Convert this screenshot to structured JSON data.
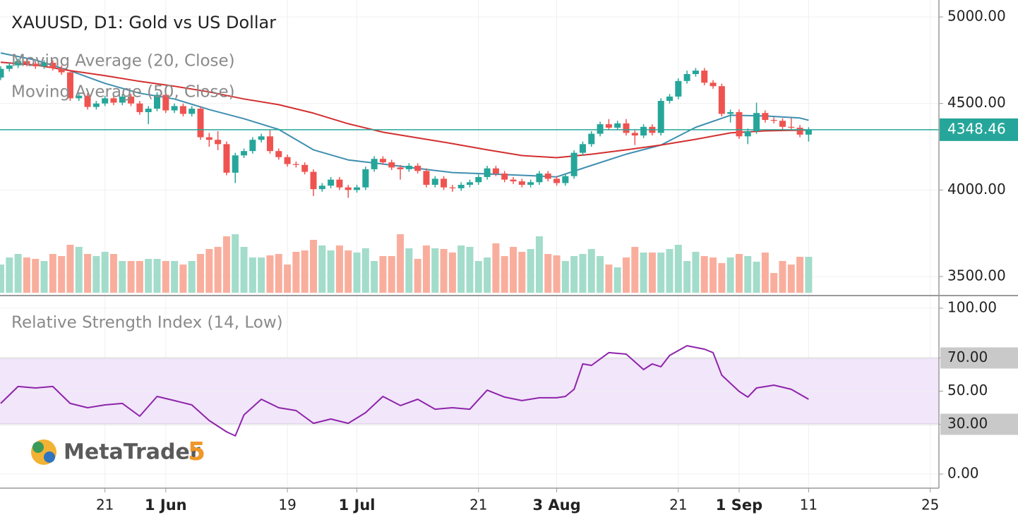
{
  "chart_data": [
    {
      "type": "candlestick",
      "title": "XAUUSD, D1: Gold vs US Dollar",
      "open": [
        4650,
        4700,
        4720,
        4745,
        4730,
        4715,
        4735,
        4705,
        4680,
        4530,
        4545,
        4480,
        4500,
        4530,
        4505,
        4540,
        4500,
        4450,
        4470,
        4550,
        4460,
        4485,
        4440,
        4470,
        4305,
        4290,
        4265,
        4100,
        4200,
        4225,
        4290,
        4310,
        4225,
        4190,
        4150,
        4145,
        4105,
        4005,
        4025,
        4060,
        4015,
        4000,
        4015,
        4120,
        4180,
        4160,
        4130,
        4120,
        4140,
        4110,
        4030,
        4065,
        4015,
        4010,
        4030,
        4045,
        4075,
        4125,
        4095,
        4060,
        4050,
        4030,
        4045,
        4095,
        4065,
        4040,
        4080,
        4215,
        4265,
        4325,
        4380,
        4360,
        4385,
        4330,
        4315,
        4365,
        4330,
        4515,
        4540,
        4630,
        4670,
        4690,
        4620,
        4600,
        4440,
        4450,
        4310,
        4340,
        4445,
        4405,
        4400,
        4365,
        4360,
        4320
      ],
      "high": [
        4715,
        4735,
        4760,
        4760,
        4745,
        4750,
        4750,
        4720,
        4695,
        4560,
        4560,
        4515,
        4545,
        4545,
        4555,
        4555,
        4515,
        4485,
        4565,
        4565,
        4500,
        4500,
        4485,
        4485,
        4330,
        4340,
        4280,
        4215,
        4240,
        4305,
        4325,
        4345,
        4240,
        4205,
        4165,
        4160,
        4120,
        4040,
        4075,
        4075,
        4030,
        4030,
        4135,
        4195,
        4195,
        4175,
        4145,
        4155,
        4155,
        4125,
        4080,
        4080,
        4030,
        4045,
        4060,
        4090,
        4140,
        4140,
        4110,
        4075,
        4065,
        4060,
        4110,
        4110,
        4080,
        4095,
        4230,
        4280,
        4340,
        4395,
        4410,
        4400,
        4410,
        4345,
        4380,
        4380,
        4530,
        4555,
        4645,
        4690,
        4705,
        4705,
        4635,
        4615,
        4465,
        4465,
        4355,
        4505,
        4460,
        4420,
        4415,
        4415,
        4375,
        4363
      ],
      "low": [
        4635,
        4685,
        4705,
        4715,
        4700,
        4700,
        4690,
        4665,
        4515,
        4515,
        4465,
        4465,
        4485,
        4490,
        4490,
        4485,
        4435,
        4380,
        4455,
        4445,
        4445,
        4425,
        4425,
        4290,
        4250,
        4230,
        4085,
        4040,
        4185,
        4210,
        4275,
        4210,
        4175,
        4135,
        4130,
        4090,
        3965,
        3990,
        4010,
        4000,
        3955,
        3985,
        4000,
        4105,
        4145,
        4115,
        4060,
        4105,
        4095,
        4015,
        4015,
        4000,
        3990,
        3995,
        4015,
        4030,
        4060,
        4080,
        4045,
        4035,
        4015,
        4015,
        4030,
        4050,
        4025,
        4025,
        4065,
        4200,
        4250,
        4310,
        4345,
        4345,
        4315,
        4260,
        4300,
        4315,
        4315,
        4500,
        4525,
        4615,
        4655,
        4605,
        4585,
        4425,
        4390,
        4295,
        4265,
        4325,
        4390,
        4385,
        4350,
        4345,
        4305,
        4280
      ],
      "close": [
        4700,
        4720,
        4745,
        4730,
        4715,
        4735,
        4705,
        4680,
        4530,
        4545,
        4480,
        4500,
        4530,
        4505,
        4540,
        4500,
        4450,
        4470,
        4550,
        4460,
        4485,
        4440,
        4470,
        4305,
        4290,
        4265,
        4100,
        4200,
        4225,
        4290,
        4310,
        4225,
        4190,
        4150,
        4145,
        4105,
        4005,
        4025,
        4060,
        4015,
        4000,
        4015,
        4120,
        4180,
        4160,
        4130,
        4120,
        4140,
        4110,
        4030,
        4065,
        4015,
        4010,
        4030,
        4045,
        4075,
        4125,
        4095,
        4060,
        4050,
        4030,
        4045,
        4095,
        4065,
        4040,
        4080,
        4215,
        4265,
        4325,
        4380,
        4360,
        4385,
        4330,
        4315,
        4365,
        4330,
        4515,
        4540,
        4630,
        4670,
        4690,
        4620,
        4600,
        4440,
        4450,
        4310,
        4340,
        4445,
        4405,
        4400,
        4365,
        4360,
        4320,
        4348.46
      ],
      "up_color": "#26a69a",
      "down_color": "#ef5350",
      "volume": {
        "values": [
          40,
          50,
          55,
          50,
          48,
          45,
          55,
          52,
          68,
          65,
          55,
          52,
          58,
          55,
          45,
          45,
          45,
          48,
          48,
          45,
          45,
          40,
          45,
          55,
          62,
          65,
          80,
          83,
          65,
          50,
          50,
          53,
          55,
          40,
          58,
          60,
          75,
          67,
          60,
          67,
          60,
          57,
          63,
          45,
          52,
          52,
          83,
          63,
          48,
          67,
          63,
          62,
          57,
          67,
          65,
          45,
          50,
          70,
          52,
          65,
          58,
          62,
          80,
          55,
          53,
          45,
          52,
          55,
          62,
          52,
          40,
          36,
          50,
          65,
          57,
          57,
          57,
          62,
          68,
          45,
          58,
          52,
          50,
          42,
          50,
          55,
          52,
          44,
          57,
          28,
          45,
          40,
          51,
          51
        ],
        "up_color": "#a3dcca",
        "down_color": "#f9ae9d"
      },
      "series": [
        {
          "name": "Moving Average (20, Close)",
          "color": "#3f8fb0",
          "x": [
            0,
            4,
            8,
            12,
            16,
            20,
            24,
            28,
            32,
            36,
            40,
            44,
            48,
            52,
            56,
            60,
            64,
            68,
            72,
            76,
            80,
            84,
            88,
            92,
            93
          ],
          "values": [
            4792,
            4751,
            4689,
            4616,
            4559,
            4526,
            4465,
            4412,
            4350,
            4232,
            4174,
            4150,
            4125,
            4101,
            4093,
            4085,
            4076,
            4142,
            4207,
            4260,
            4362,
            4432,
            4428,
            4416,
            4403
          ]
        },
        {
          "name": "Moving Average (50, Close)",
          "color": "#d32f2f",
          "x": [
            0,
            4,
            8,
            12,
            16,
            20,
            24,
            28,
            32,
            36,
            40,
            44,
            48,
            52,
            56,
            60,
            64,
            68,
            72,
            76,
            80,
            84,
            88,
            92,
            93
          ],
          "values": [
            4738,
            4722,
            4690,
            4661,
            4628,
            4600,
            4567,
            4526,
            4493,
            4444,
            4383,
            4334,
            4301,
            4268,
            4232,
            4199,
            4187,
            4207,
            4232,
            4260,
            4293,
            4330,
            4342,
            4346,
            4346
          ]
        }
      ],
      "ylim": [
        3394,
        5098
      ],
      "yticks": [
        {
          "value": 3500,
          "label": "3500.00"
        },
        {
          "value": 4000,
          "label": "4000.00"
        },
        {
          "value": 4500,
          "label": "4500.00"
        },
        {
          "value": 5000,
          "label": "5000.00"
        }
      ],
      "grid": true
    },
    {
      "type": "line",
      "series": [
        {
          "name": "Relative Strength Index (14, Low)",
          "color": "#8e24aa",
          "x": [
            0,
            2,
            4,
            6,
            8,
            10,
            12,
            14,
            16,
            18,
            20,
            22,
            24,
            26,
            27,
            28,
            30,
            32,
            34,
            36,
            38,
            40,
            42,
            44,
            46,
            48,
            50,
            52,
            54,
            56,
            58,
            60,
            62,
            64,
            65,
            66,
            67,
            68,
            70,
            72,
            74,
            75,
            76,
            77,
            79,
            81,
            82,
            83,
            85,
            86,
            87,
            89,
            91,
            93
          ],
          "values": [
            42.6,
            52.8,
            51.9,
            52.8,
            42.6,
            40.0,
            41.7,
            42.6,
            34.9,
            46.8,
            44.3,
            41.7,
            32.3,
            25.5,
            23.0,
            35.7,
            45.1,
            40.0,
            38.3,
            30.6,
            33.2,
            30.6,
            37.0,
            46.8,
            41.3,
            45.1,
            39.1,
            40.0,
            39.1,
            50.6,
            46.4,
            44.3,
            46.0,
            46.0,
            46.8,
            51.1,
            66.4,
            65.5,
            73.2,
            72.3,
            63.0,
            66.4,
            64.7,
            71.5,
            77.4,
            75.3,
            73.2,
            59.6,
            49.8,
            46.4,
            51.9,
            53.6,
            51.1,
            45.1
          ]
        }
      ],
      "xlim": [
        0,
        108
      ],
      "xticks": [
        {
          "value": 12,
          "label": "21"
        },
        {
          "value": 19,
          "label": "1 Jun"
        },
        {
          "value": 33,
          "label": "19"
        },
        {
          "value": 41,
          "label": "1 Jul"
        },
        {
          "value": 55,
          "label": "21"
        },
        {
          "value": 64,
          "label": "3 Aug"
        },
        {
          "value": 78,
          "label": "21"
        },
        {
          "value": 85,
          "label": "1 Sep"
        },
        {
          "value": 93,
          "label": "11"
        },
        {
          "value": 107,
          "label": "25"
        }
      ],
      "ylim": [
        -8.5,
        107.2
      ],
      "yticks": [
        {
          "value": 0,
          "label": "0.00"
        },
        {
          "value": 30,
          "label": "30.00"
        },
        {
          "value": 50,
          "label": "50.00"
        },
        {
          "value": 70,
          "label": "70.00"
        },
        {
          "value": 100,
          "label": "100.00"
        }
      ],
      "band": [
        30,
        70
      ],
      "band_color": "#f1e6fa",
      "grid": true
    }
  ],
  "logo": {
    "name": "MetaTrader",
    "version": "5"
  }
}
